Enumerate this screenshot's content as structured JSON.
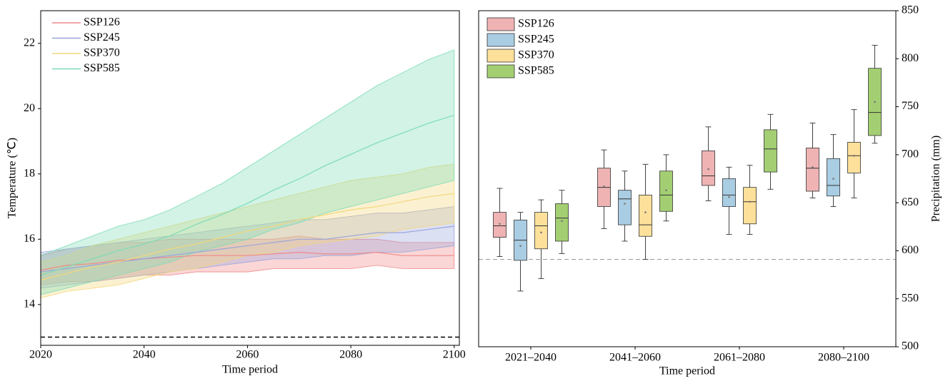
{
  "chart_data": [
    {
      "type": "line",
      "xlabel": "Time period",
      "ylabel": "Temperature (℃)",
      "x": [
        2020,
        2025,
        2030,
        2035,
        2040,
        2045,
        2050,
        2055,
        2060,
        2065,
        2070,
        2075,
        2080,
        2085,
        2090,
        2095,
        2100
      ],
      "xlim": [
        2020,
        2101
      ],
      "xticks": [
        2020,
        2040,
        2060,
        2080,
        2100
      ],
      "ylim": [
        12.75,
        23
      ],
      "yticks": [
        14,
        16,
        18,
        20,
        22
      ],
      "ref_line": 13,
      "legend": "upper left",
      "series": [
        {
          "name": "SSP126",
          "color": "#f08a8a",
          "values": [
            15.05,
            15.2,
            15.25,
            15.35,
            15.4,
            15.45,
            15.5,
            15.5,
            15.5,
            15.55,
            15.6,
            15.55,
            15.55,
            15.6,
            15.5,
            15.5,
            15.5
          ],
          "lower": [
            14.6,
            14.7,
            14.7,
            14.8,
            14.9,
            14.9,
            15.0,
            15.0,
            15.0,
            15.1,
            15.1,
            15.1,
            15.1,
            15.2,
            15.1,
            15.1,
            15.1
          ],
          "upper": [
            15.5,
            15.7,
            15.8,
            15.9,
            15.9,
            16.0,
            16.0,
            16.0,
            16.0,
            16.0,
            16.1,
            16.0,
            16.0,
            16.0,
            15.9,
            15.9,
            15.9
          ]
        },
        {
          "name": "SSP245",
          "color": "#9aa6dc",
          "values": [
            15.0,
            15.1,
            15.2,
            15.3,
            15.4,
            15.5,
            15.6,
            15.7,
            15.8,
            15.9,
            16.0,
            16.0,
            16.1,
            16.2,
            16.2,
            16.3,
            16.4
          ],
          "lower": [
            14.5,
            14.6,
            14.7,
            14.8,
            14.9,
            15.0,
            15.1,
            15.2,
            15.3,
            15.4,
            15.4,
            15.5,
            15.5,
            15.6,
            15.6,
            15.7,
            15.8
          ],
          "upper": [
            15.6,
            15.7,
            15.8,
            15.9,
            16.0,
            16.1,
            16.2,
            16.3,
            16.4,
            16.5,
            16.6,
            16.6,
            16.7,
            16.8,
            16.8,
            16.9,
            17.0
          ]
        },
        {
          "name": "SSP370",
          "color": "#f3d77a",
          "values": [
            14.75,
            14.95,
            15.15,
            15.3,
            15.5,
            15.7,
            15.85,
            16.05,
            16.25,
            16.4,
            16.6,
            16.75,
            16.9,
            17.0,
            17.15,
            17.3,
            17.4
          ],
          "lower": [
            14.2,
            14.4,
            14.5,
            14.6,
            14.8,
            15.0,
            15.1,
            15.3,
            15.5,
            15.6,
            15.8,
            15.9,
            16.0,
            16.1,
            16.3,
            16.4,
            16.5
          ],
          "upper": [
            15.3,
            15.5,
            15.8,
            16.0,
            16.2,
            16.4,
            16.6,
            16.8,
            17.0,
            17.2,
            17.4,
            17.6,
            17.8,
            17.9,
            18.0,
            18.2,
            18.3
          ]
        },
        {
          "name": "SSP585",
          "color": "#7ddcb6",
          "values": [
            14.9,
            15.15,
            15.4,
            15.65,
            15.85,
            16.1,
            16.45,
            16.75,
            17.1,
            17.5,
            17.85,
            18.25,
            18.6,
            18.95,
            19.25,
            19.55,
            19.8
          ],
          "lower": [
            14.3,
            14.5,
            14.7,
            14.9,
            15.1,
            15.3,
            15.6,
            15.8,
            16.0,
            16.3,
            16.5,
            16.8,
            17.0,
            17.2,
            17.4,
            17.6,
            17.8
          ],
          "upper": [
            15.5,
            15.8,
            16.1,
            16.4,
            16.6,
            16.9,
            17.3,
            17.7,
            18.2,
            18.7,
            19.2,
            19.7,
            20.2,
            20.7,
            21.1,
            21.5,
            21.8
          ]
        }
      ]
    },
    {
      "type": "box",
      "xlabel": "Time period",
      "ylabel": "Precipitation (mm)",
      "categories": [
        "2021–2040",
        "2041–2060",
        "2061–2080",
        "2080–2100"
      ],
      "ylim": [
        500,
        850
      ],
      "yticks": [
        500,
        550,
        600,
        650,
        700,
        750,
        800,
        850
      ],
      "ref_line": 591,
      "legend": "upper left",
      "series": [
        {
          "name": "SSP126",
          "color": "#efb3b3",
          "values": [
            {
              "min": 594,
              "q1": 614,
              "median": 626,
              "q3": 640,
              "max": 665,
              "mean": 628
            },
            {
              "min": 623,
              "q1": 646,
              "median": 666,
              "q3": 686,
              "max": 705,
              "mean": 667
            },
            {
              "min": 652,
              "q1": 668,
              "median": 678,
              "q3": 704,
              "max": 729,
              "mean": 685
            },
            {
              "min": 655,
              "q1": 662,
              "median": 686,
              "q3": 707,
              "max": 733,
              "mean": 687
            }
          ]
        },
        {
          "name": "SSP245",
          "color": "#a9cde3",
          "values": [
            {
              "min": 558,
              "q1": 590,
              "median": 611,
              "q3": 632,
              "max": 640,
              "mean": 605
            },
            {
              "min": 610,
              "q1": 627,
              "median": 654,
              "q3": 663,
              "max": 683,
              "mean": 649
            },
            {
              "min": 617,
              "q1": 646,
              "median": 658,
              "q3": 675,
              "max": 687,
              "mean": 656
            },
            {
              "min": 646,
              "q1": 657,
              "median": 668,
              "q3": 696,
              "max": 721,
              "mean": 675
            }
          ]
        },
        {
          "name": "SSP370",
          "color": "#fde09a",
          "values": [
            {
              "min": 571,
              "q1": 602,
              "median": 626,
              "q3": 640,
              "max": 653,
              "mean": 619
            },
            {
              "min": 591,
              "q1": 615,
              "median": 627,
              "q3": 658,
              "max": 690,
              "mean": 640
            },
            {
              "min": 617,
              "q1": 628,
              "median": 651,
              "q3": 666,
              "max": 689,
              "mean": 651
            },
            {
              "min": 655,
              "q1": 681,
              "median": 699,
              "q3": 713,
              "max": 747,
              "mean": 699
            }
          ]
        },
        {
          "name": "SSP585",
          "color": "#a3cf72",
          "values": [
            {
              "min": 597,
              "q1": 610,
              "median": 634,
              "q3": 649,
              "max": 663,
              "mean": 631
            },
            {
              "min": 631,
              "q1": 641,
              "median": 658,
              "q3": 683,
              "max": 700,
              "mean": 663
            },
            {
              "min": 664,
              "q1": 682,
              "median": 706,
              "q3": 726,
              "max": 742,
              "mean": 706
            },
            {
              "min": 712,
              "q1": 720,
              "median": 744,
              "q3": 790,
              "max": 814,
              "mean": 755
            }
          ]
        }
      ]
    }
  ]
}
